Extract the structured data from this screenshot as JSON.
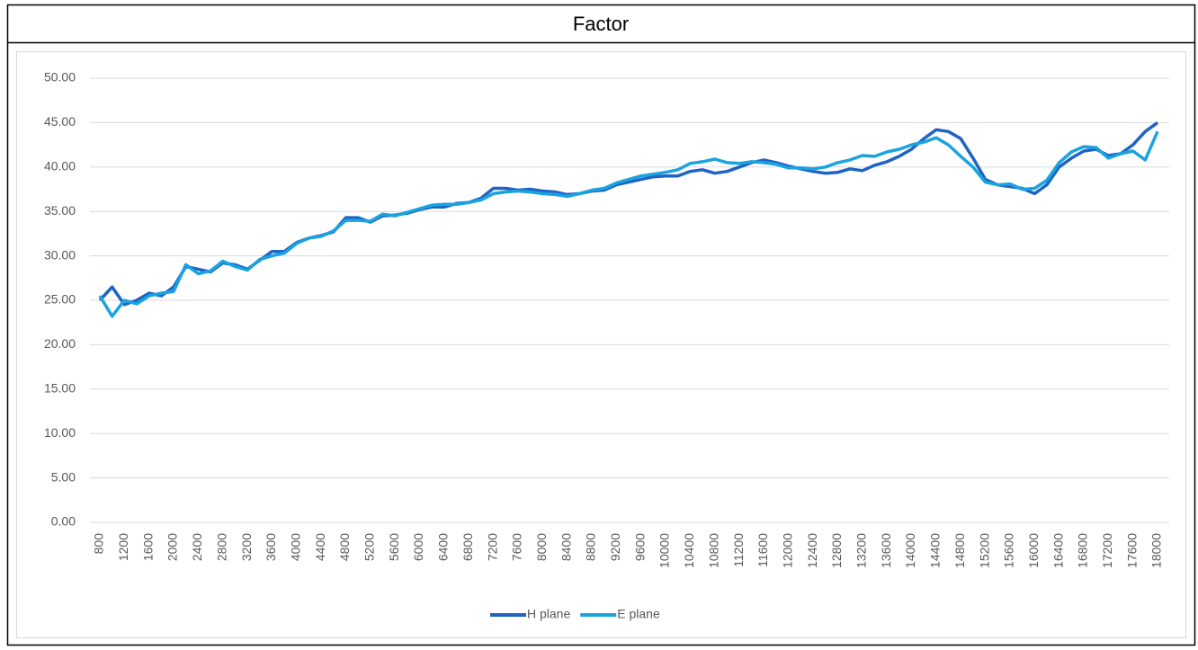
{
  "chart_data": {
    "type": "line",
    "title": "Factor",
    "x": [
      800,
      1000,
      1200,
      1400,
      1600,
      1800,
      2000,
      2200,
      2400,
      2600,
      2800,
      3000,
      3200,
      3400,
      3600,
      3800,
      4000,
      4200,
      4400,
      4600,
      4800,
      5000,
      5200,
      5400,
      5600,
      5800,
      6000,
      6200,
      6400,
      6600,
      6800,
      7000,
      7200,
      7400,
      7600,
      7800,
      8000,
      8200,
      8400,
      8600,
      8800,
      9000,
      9200,
      9400,
      9600,
      9800,
      10000,
      10200,
      10400,
      10600,
      10800,
      11000,
      11200,
      11400,
      11600,
      11800,
      12000,
      12200,
      12400,
      12600,
      12800,
      13000,
      13200,
      13400,
      13600,
      13800,
      14000,
      14200,
      14400,
      14600,
      14800,
      15000,
      15200,
      15400,
      15600,
      15800,
      16000,
      16200,
      16400,
      16600,
      16800,
      17000,
      17200,
      17400,
      17600,
      17800,
      18000
    ],
    "series": [
      {
        "name": "H plane",
        "color": "#1f63c4",
        "values": [
          25.0,
          26.5,
          24.5,
          25.0,
          25.8,
          25.5,
          26.5,
          28.8,
          28.5,
          28.2,
          29.2,
          29.0,
          28.5,
          29.5,
          30.5,
          30.5,
          31.5,
          32.0,
          32.3,
          32.7,
          34.3,
          34.3,
          33.8,
          34.5,
          34.6,
          34.8,
          35.2,
          35.5,
          35.5,
          35.9,
          36.0,
          36.5,
          37.6,
          37.6,
          37.4,
          37.5,
          37.3,
          37.2,
          36.9,
          37.0,
          37.3,
          37.4,
          38.0,
          38.3,
          38.6,
          38.9,
          39.0,
          39.0,
          39.5,
          39.7,
          39.3,
          39.5,
          40.0,
          40.5,
          40.8,
          40.5,
          40.1,
          39.8,
          39.5,
          39.3,
          39.4,
          39.8,
          39.6,
          40.2,
          40.6,
          41.2,
          42.0,
          43.2,
          44.2,
          44.0,
          43.2,
          41.0,
          38.6,
          38.0,
          37.8,
          37.6,
          37.0,
          38.0,
          40.0,
          41.0,
          41.8,
          42.0,
          41.3,
          41.5,
          42.5,
          44.0,
          45.0
        ]
      },
      {
        "name": "E plane",
        "color": "#19a3df",
        "values": [
          25.5,
          23.2,
          25.0,
          24.6,
          25.5,
          25.8,
          26.0,
          29.0,
          28.0,
          28.3,
          29.4,
          28.8,
          28.4,
          29.6,
          30.0,
          30.3,
          31.4,
          32.0,
          32.2,
          32.8,
          34.0,
          34.0,
          33.9,
          34.7,
          34.5,
          34.9,
          35.3,
          35.7,
          35.8,
          35.8,
          36.0,
          36.3,
          37.0,
          37.2,
          37.3,
          37.2,
          37.0,
          36.9,
          36.7,
          37.0,
          37.4,
          37.6,
          38.2,
          38.6,
          39.0,
          39.2,
          39.4,
          39.7,
          40.4,
          40.6,
          40.9,
          40.5,
          40.4,
          40.6,
          40.5,
          40.3,
          39.9,
          39.9,
          39.8,
          40.0,
          40.5,
          40.8,
          41.3,
          41.2,
          41.7,
          42.0,
          42.5,
          42.8,
          43.3,
          42.5,
          41.2,
          40.0,
          38.3,
          38.0,
          38.1,
          37.5,
          37.6,
          38.5,
          40.5,
          41.7,
          42.3,
          42.2,
          41.0,
          41.5,
          41.8,
          40.8,
          44.0
        ]
      }
    ],
    "xlim": [
      800,
      18000
    ],
    "xticks": [
      800,
      1200,
      1600,
      2000,
      2400,
      2800,
      3200,
      3600,
      4000,
      4400,
      4800,
      5200,
      5600,
      6000,
      6400,
      6800,
      7200,
      7600,
      8000,
      8400,
      8800,
      9200,
      9600,
      10000,
      10400,
      10800,
      11200,
      11600,
      12000,
      12400,
      12800,
      13200,
      13600,
      14000,
      14400,
      14800,
      15200,
      15600,
      16000,
      16400,
      16800,
      17200,
      17600,
      18000
    ],
    "ylim": [
      0,
      50
    ],
    "yticks": [
      {
        "value": 0,
        "label": "0.00"
      },
      {
        "value": 5,
        "label": "5.00"
      },
      {
        "value": 10,
        "label": "10.00"
      },
      {
        "value": 15,
        "label": "15.00"
      },
      {
        "value": 20,
        "label": "20.00"
      },
      {
        "value": 25,
        "label": "25.00"
      },
      {
        "value": 30,
        "label": "30.00"
      },
      {
        "value": 35,
        "label": "35.00"
      },
      {
        "value": 40,
        "label": "40.00"
      },
      {
        "value": 45,
        "label": "45.00"
      },
      {
        "value": 50,
        "label": "50.00"
      }
    ],
    "grid": true,
    "legend": "bottom"
  }
}
